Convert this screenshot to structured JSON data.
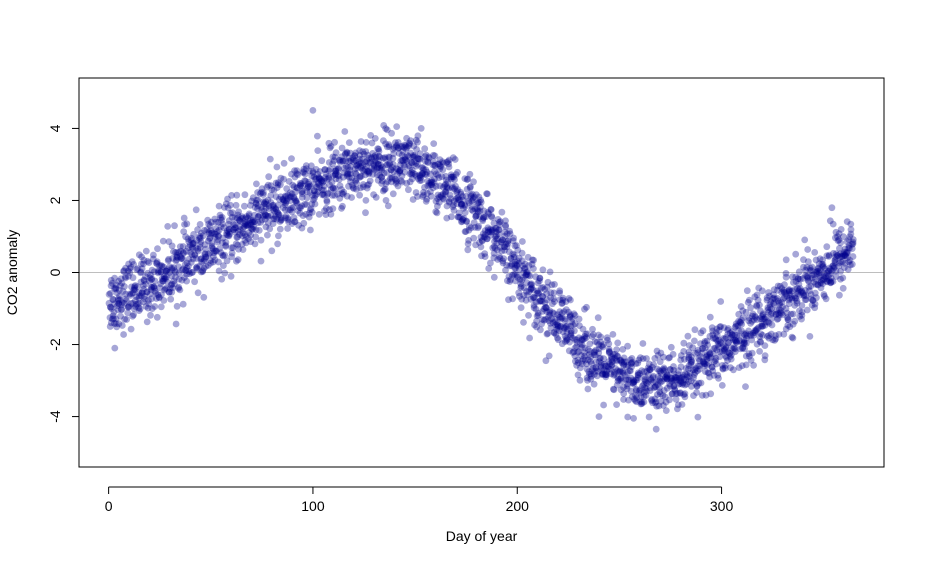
{
  "chart_data": {
    "type": "scatter",
    "title": "",
    "xlabel": "Day of year",
    "ylabel": "CO2 anomaly",
    "xlim": [
      -14.5,
      379.5
    ],
    "ylim": [
      -5.4,
      5.4
    ],
    "x_ticks": [
      0,
      100,
      200,
      300
    ],
    "y_ticks": [
      -4,
      -2,
      0,
      2,
      4
    ],
    "x_tick_labels": [
      "0",
      "100",
      "200",
      "300"
    ],
    "y_tick_labels": [
      "-4",
      "-2",
      "0",
      "2",
      "4"
    ],
    "reference_line": {
      "y": 0,
      "color": "#bebebe"
    },
    "grid": false,
    "legend": "none",
    "point_color": "#00008b",
    "point_opacity": 0.35,
    "curve_points": [
      [
        0,
        -0.8
      ],
      [
        20,
        -0.35
      ],
      [
        40,
        0.4
      ],
      [
        60,
        1.05
      ],
      [
        80,
        1.8
      ],
      [
        100,
        2.3
      ],
      [
        120,
        2.9
      ],
      [
        140,
        3.05
      ],
      [
        160,
        2.6
      ],
      [
        180,
        1.6
      ],
      [
        200,
        0.1
      ],
      [
        220,
        -1.3
      ],
      [
        240,
        -2.5
      ],
      [
        260,
        -3.1
      ],
      [
        280,
        -3.0
      ],
      [
        300,
        -2.2
      ],
      [
        320,
        -1.3
      ],
      [
        340,
        -0.4
      ],
      [
        364,
        0.7
      ]
    ],
    "spread": 0.45,
    "samples_per_day": 7,
    "notable_points": [
      {
        "x": 100,
        "y": 4.5
      },
      {
        "x": 268,
        "y": -4.35
      },
      {
        "x": 3,
        "y": -2.1
      },
      {
        "x": 141,
        "y": 4.05
      },
      {
        "x": 153,
        "y": 4.0
      },
      {
        "x": 354,
        "y": 1.8
      },
      {
        "x": 214,
        "y": -2.45
      },
      {
        "x": 240,
        "y": -4.0
      }
    ]
  }
}
